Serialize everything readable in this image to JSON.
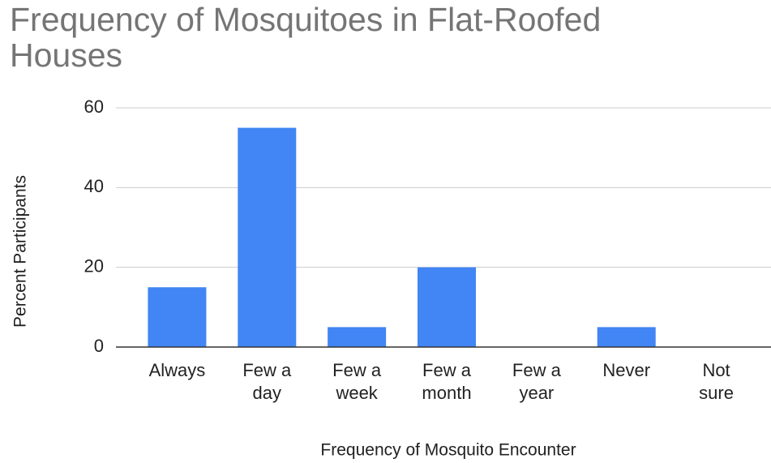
{
  "chart_data": {
    "type": "bar",
    "title": "Frequency of Mosquitoes in Flat-Roofed Houses",
    "x_label": "Frequency of Mosquito Encounter",
    "y_label": "Percent Participants",
    "categories": [
      "Always",
      "Few a day",
      "Few a week",
      "Few a month",
      "Few a year",
      "Never",
      "Not sure"
    ],
    "values": [
      15,
      55,
      5,
      20,
      0,
      5,
      0
    ],
    "color": "#4285f4",
    "ylim": [
      0,
      60
    ],
    "yticks": [
      0,
      20,
      40,
      60
    ],
    "grid": true
  }
}
